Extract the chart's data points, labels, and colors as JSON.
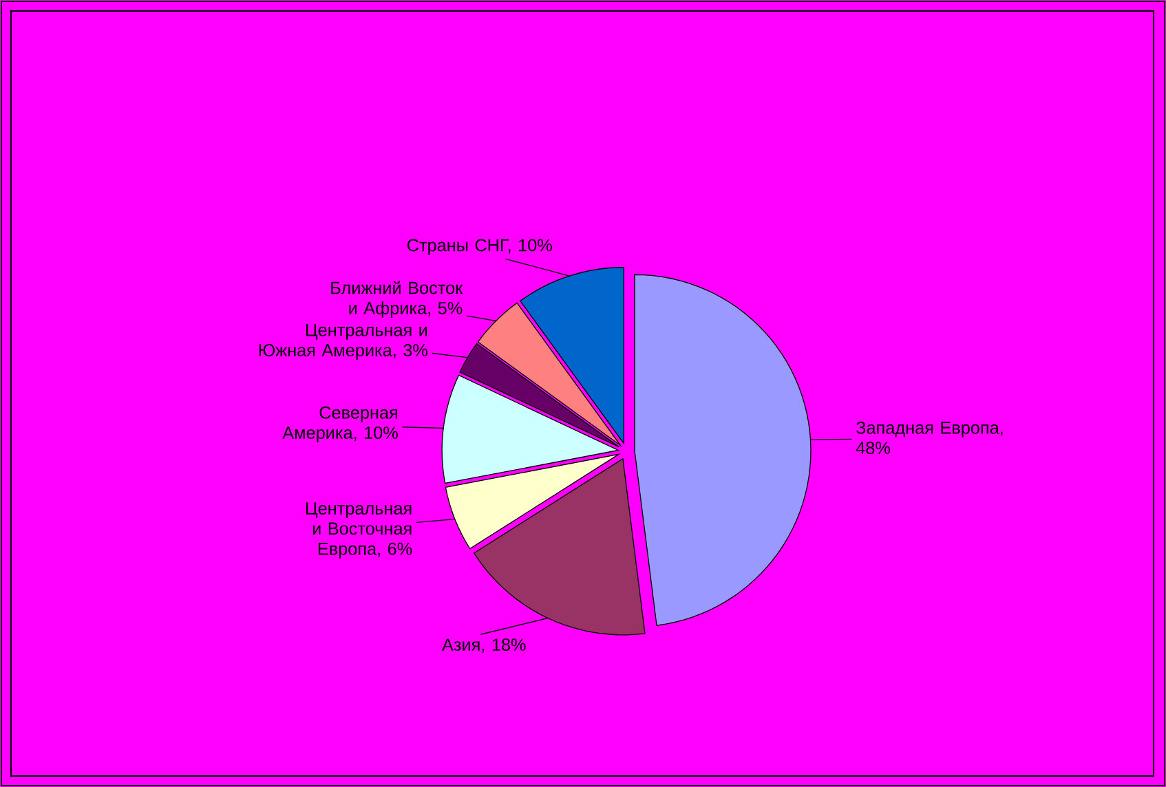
{
  "chart_data": {
    "type": "pie",
    "categories": [
      "Западная Европа, 48%",
      "Азия, 18%",
      "Центральная и Восточная Европа, 6%",
      "Северная Америка, 10%",
      "Центральная и Южная Америка, 3%",
      "Ближний Восток и Африка, 5%",
      "Страны СНГ, 10%"
    ],
    "values": [
      48,
      18,
      6,
      10,
      3,
      5,
      10
    ],
    "colors": [
      "#9999ff",
      "#993366",
      "#ffffcc",
      "#ccffff",
      "#660066",
      "#ff8080",
      "#0066cc"
    ]
  }
}
